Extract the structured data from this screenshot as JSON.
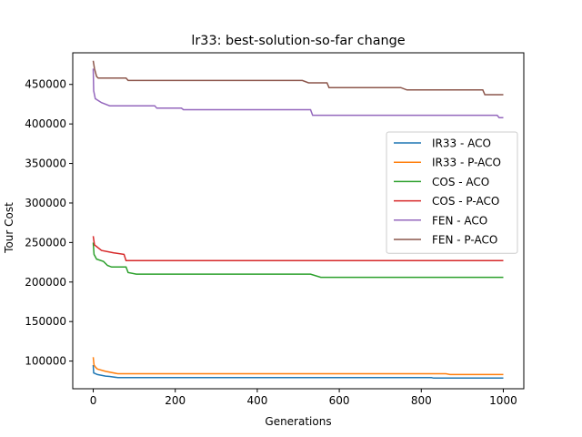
{
  "chart_data": {
    "type": "line",
    "title": "lr33: best-solution-so-far change",
    "xlabel": "Generations",
    "ylabel": "Tour Cost",
    "xlim": [
      -50,
      1050
    ],
    "ylim": [
      65000,
      490000
    ],
    "xticks": [
      0,
      200,
      400,
      600,
      800,
      1000
    ],
    "yticks": [
      100000,
      150000,
      200000,
      250000,
      300000,
      350000,
      400000,
      450000
    ],
    "ytick_labels": [
      "100000",
      "150000",
      "200000",
      "250000",
      "300000",
      "350000",
      "400000",
      "450000"
    ],
    "xtick_labels": [
      "0",
      "200",
      "400",
      "600",
      "800",
      "1000"
    ],
    "grid": false,
    "legend_position": "center-right",
    "series": [
      {
        "name": "IR33 - ACO",
        "color": "#1f77b4",
        "points": [
          [
            0,
            95000
          ],
          [
            1,
            85000
          ],
          [
            10,
            83000
          ],
          [
            20,
            82000
          ],
          [
            30,
            81000
          ],
          [
            40,
            80500
          ],
          [
            60,
            79000
          ],
          [
            300,
            79000
          ],
          [
            600,
            79000
          ],
          [
            825,
            79000
          ],
          [
            830,
            78500
          ],
          [
            1000,
            78500
          ]
        ]
      },
      {
        "name": "IR33 - P-ACO",
        "color": "#ff7f0e",
        "points": [
          [
            0,
            105000
          ],
          [
            2,
            95000
          ],
          [
            6,
            92000
          ],
          [
            10,
            90000
          ],
          [
            30,
            87000
          ],
          [
            60,
            84000
          ],
          [
            300,
            84000
          ],
          [
            600,
            84000
          ],
          [
            860,
            84000
          ],
          [
            870,
            83000
          ],
          [
            1000,
            83000
          ]
        ]
      },
      {
        "name": "COS - ACO",
        "color": "#2ca02c",
        "points": [
          [
            0,
            250000
          ],
          [
            2,
            235000
          ],
          [
            8,
            229000
          ],
          [
            25,
            226000
          ],
          [
            35,
            221000
          ],
          [
            45,
            219000
          ],
          [
            80,
            219000
          ],
          [
            85,
            212000
          ],
          [
            105,
            210000
          ],
          [
            300,
            210000
          ],
          [
            530,
            210000
          ],
          [
            555,
            206000
          ],
          [
            1000,
            206000
          ]
        ]
      },
      {
        "name": "COS - P-ACO",
        "color": "#d62728",
        "points": [
          [
            0,
            258000
          ],
          [
            3,
            247000
          ],
          [
            20,
            240000
          ],
          [
            50,
            237000
          ],
          [
            75,
            235000
          ],
          [
            80,
            227000
          ],
          [
            300,
            227000
          ],
          [
            600,
            227000
          ],
          [
            1000,
            227000
          ]
        ]
      },
      {
        "name": "FEN - ACO",
        "color": "#9467bd",
        "points": [
          [
            0,
            470000
          ],
          [
            1,
            442000
          ],
          [
            5,
            432000
          ],
          [
            20,
            427000
          ],
          [
            40,
            423000
          ],
          [
            150,
            423000
          ],
          [
            155,
            420000
          ],
          [
            215,
            420000
          ],
          [
            220,
            418000
          ],
          [
            530,
            418000
          ],
          [
            535,
            411000
          ],
          [
            985,
            411000
          ],
          [
            990,
            408000
          ],
          [
            1000,
            408000
          ]
        ]
      },
      {
        "name": "FEN - P-ACO",
        "color": "#8c564b",
        "points": [
          [
            0,
            480000
          ],
          [
            3,
            470000
          ],
          [
            8,
            460000
          ],
          [
            12,
            458000
          ],
          [
            80,
            458000
          ],
          [
            85,
            455000
          ],
          [
            510,
            455000
          ],
          [
            525,
            452000
          ],
          [
            570,
            452000
          ],
          [
            575,
            446000
          ],
          [
            750,
            446000
          ],
          [
            765,
            443000
          ],
          [
            950,
            443000
          ],
          [
            955,
            437000
          ],
          [
            1000,
            437000
          ]
        ]
      }
    ]
  }
}
